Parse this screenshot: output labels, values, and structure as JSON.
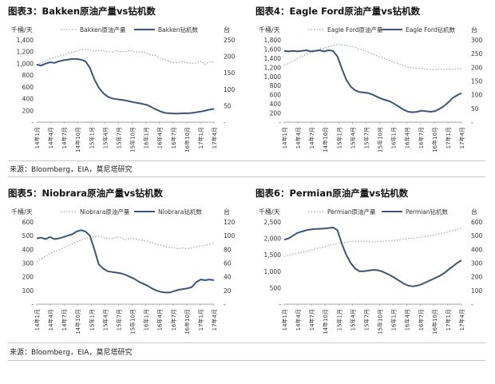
{
  "source_row1": "来源：Bloomberg，EIA，莫尼塔研究",
  "source_row2": "来源：Bloomberg，EIA，莫尼塔研究",
  "chart_data": [
    {
      "type": "line",
      "title": "图表3：Bakken原油产量vs钻机数",
      "left_unit": "千桶/天",
      "right_unit": "台",
      "x_labels": [
        "14年1月",
        "14年4月",
        "14年7月",
        "14年10月",
        "15年1月",
        "15年4月",
        "15年7月",
        "15年10月",
        "16年1月",
        "16年4月",
        "16年7月",
        "16年10月",
        "17年1月",
        "17年4月"
      ],
      "left_ticks": [
        "-",
        "200",
        "400",
        "600",
        "800",
        "1,000",
        "1,200",
        "1,400"
      ],
      "right_ticks": [
        "-",
        "50",
        "100",
        "150",
        "200",
        "250"
      ],
      "ylim_left": [
        0,
        1400
      ],
      "ylim_right": [
        0,
        250
      ],
      "legend": [
        "Bakken原油产量",
        "Bakken钻机数"
      ],
      "series": [
        {
          "name": "Bakken原油产量",
          "axis": "left",
          "style": "dotted",
          "values": [
            980,
            1010,
            1040,
            1070,
            1100,
            1120,
            1140,
            1170,
            1190,
            1210,
            1230,
            1240,
            1230,
            1200,
            1220,
            1210,
            1200,
            1190,
            1220,
            1200,
            1200,
            1220,
            1200,
            1190,
            1200,
            1170,
            1140,
            1130,
            1080,
            1060,
            1030,
            1010,
            1020,
            1030,
            1010,
            1000,
            1010,
            1040,
            980,
            1030,
            1020
          ]
        },
        {
          "name": "Bakken钻机数",
          "axis": "right",
          "style": "solid",
          "values": [
            175,
            172,
            178,
            182,
            180,
            185,
            188,
            190,
            192,
            192,
            190,
            185,
            165,
            130,
            105,
            88,
            78,
            72,
            70,
            68,
            66,
            63,
            60,
            58,
            55,
            52,
            45,
            38,
            32,
            28,
            27,
            26,
            26,
            27,
            27,
            28,
            30,
            32,
            35,
            38,
            40
          ]
        }
      ]
    },
    {
      "type": "line",
      "title": "图表4：Eagle Ford原油产量vs钻机数",
      "left_unit": "千桶/天",
      "right_unit": "台",
      "x_labels": [
        "14年1月",
        "14年4月",
        "14年7月",
        "14年10月",
        "15年1月",
        "15年4月",
        "15年7月",
        "15年10月",
        "16年1月",
        "16年4月",
        "16年7月",
        "16年10月",
        "17年1月",
        "17年4月"
      ],
      "left_ticks": [
        "-",
        "200",
        "400",
        "600",
        "800",
        "1,000",
        "1,200",
        "1,400",
        "1,600",
        "1,800"
      ],
      "right_ticks": [
        "-",
        "50",
        "100",
        "150",
        "200",
        "250",
        "300"
      ],
      "ylim_left": [
        0,
        1800
      ],
      "ylim_right": [
        0,
        300
      ],
      "legend": [
        "Eagle Ford原油产量",
        "Eagle Ford钻机数"
      ],
      "series": [
        {
          "name": "Eagle Ford原油产量",
          "axis": "left",
          "style": "dotted",
          "values": [
            1240,
            1290,
            1340,
            1390,
            1440,
            1480,
            1520,
            1560,
            1600,
            1620,
            1650,
            1680,
            1700,
            1690,
            1680,
            1660,
            1640,
            1600,
            1570,
            1530,
            1490,
            1450,
            1420,
            1380,
            1340,
            1300,
            1270,
            1240,
            1200,
            1190,
            1180,
            1170,
            1160,
            1150,
            1150,
            1160,
            1150,
            1160,
            1150,
            1170,
            1170
          ]
        },
        {
          "name": "Eagle Ford钻机数",
          "axis": "right",
          "style": "solid",
          "values": [
            260,
            258,
            260,
            258,
            260,
            262,
            258,
            260,
            262,
            258,
            262,
            260,
            240,
            195,
            155,
            130,
            116,
            110,
            108,
            106,
            100,
            92,
            85,
            80,
            75,
            65,
            55,
            45,
            38,
            36,
            38,
            42,
            40,
            38,
            40,
            48,
            58,
            72,
            88,
            98,
            106
          ]
        }
      ]
    },
    {
      "type": "line",
      "title": "图表5：Niobrara原油产量vs钻机数",
      "left_unit": "千桶/天",
      "right_unit": "台",
      "x_labels": [
        "14年1月",
        "14年4月",
        "14年7月",
        "14年10月",
        "15年1月",
        "15年4月",
        "15年7月",
        "15年10月",
        "16年1月",
        "16年4月",
        "16年7月",
        "16年10月",
        "17年1月",
        "17年4月"
      ],
      "left_ticks": [
        "-",
        "100",
        "200",
        "300",
        "400",
        "500",
        "600"
      ],
      "right_ticks": [
        "-",
        "20",
        "40",
        "60",
        "80",
        "100",
        "120"
      ],
      "ylim_left": [
        0,
        600
      ],
      "ylim_right": [
        0,
        120
      ],
      "legend": [
        "Niobrara原油产量",
        "Niobrara钻机数"
      ],
      "series": [
        {
          "name": "Niobrara原油产量",
          "axis": "left",
          "style": "dotted",
          "values": [
            310,
            330,
            350,
            370,
            385,
            395,
            410,
            425,
            440,
            455,
            470,
            480,
            488,
            492,
            495,
            485,
            480,
            478,
            490,
            485,
            470,
            480,
            478,
            470,
            465,
            458,
            450,
            440,
            430,
            420,
            415,
            410,
            405,
            410,
            405,
            410,
            420,
            425,
            430,
            440,
            450
          ]
        },
        {
          "name": "Niobrara钻机数",
          "axis": "right",
          "style": "solid",
          "values": [
            96,
            97,
            95,
            98,
            95,
            96,
            98,
            100,
            102,
            106,
            108,
            106,
            100,
            80,
            58,
            52,
            48,
            47,
            46,
            45,
            43,
            40,
            37,
            33,
            30,
            27,
            23,
            20,
            18,
            17,
            17,
            19,
            21,
            22,
            23,
            25,
            32,
            36,
            35,
            36,
            35
          ]
        }
      ]
    },
    {
      "type": "line",
      "title": "图表6：Permian原油产量vs钻机数",
      "left_unit": "千桶/天",
      "right_unit": "台",
      "x_labels": [
        "14年1月",
        "14年4月",
        "14年7月",
        "14年10月",
        "15年1月",
        "15年4月",
        "15年7月",
        "15年10月",
        "16年1月",
        "16年4月",
        "16年7月",
        "16年10月",
        "17年1月",
        "17年4月"
      ],
      "left_ticks": [
        "-",
        "500",
        "1,000",
        "1,500",
        "2,000",
        "2,500"
      ],
      "right_ticks": [
        "-",
        "100",
        "200",
        "300",
        "400",
        "500",
        "600"
      ],
      "ylim_left": [
        0,
        2500
      ],
      "ylim_right": [
        0,
        600
      ],
      "legend": [
        "Permian原油产量",
        "Permian钻机数"
      ],
      "series": [
        {
          "name": "Permian原油产量",
          "axis": "left",
          "style": "dotted",
          "values": [
            1450,
            1490,
            1520,
            1550,
            1580,
            1600,
            1640,
            1680,
            1710,
            1740,
            1780,
            1820,
            1840,
            1860,
            1880,
            1900,
            1920,
            1910,
            1920,
            1900,
            1890,
            1900,
            1910,
            1920,
            1930,
            1940,
            1960,
            1980,
            2000,
            2010,
            2020,
            2040,
            2060,
            2080,
            2100,
            2130,
            2160,
            2200,
            2240,
            2270,
            2300
          ]
        },
        {
          "name": "Permian钻机数",
          "axis": "right",
          "style": "solid",
          "values": [
            470,
            480,
            500,
            520,
            530,
            540,
            545,
            548,
            550,
            552,
            555,
            560,
            540,
            440,
            360,
            300,
            260,
            240,
            240,
            245,
            250,
            248,
            240,
            225,
            210,
            190,
            170,
            150,
            135,
            130,
            135,
            145,
            160,
            175,
            190,
            205,
            225,
            250,
            275,
            300,
            320
          ]
        }
      ]
    }
  ]
}
